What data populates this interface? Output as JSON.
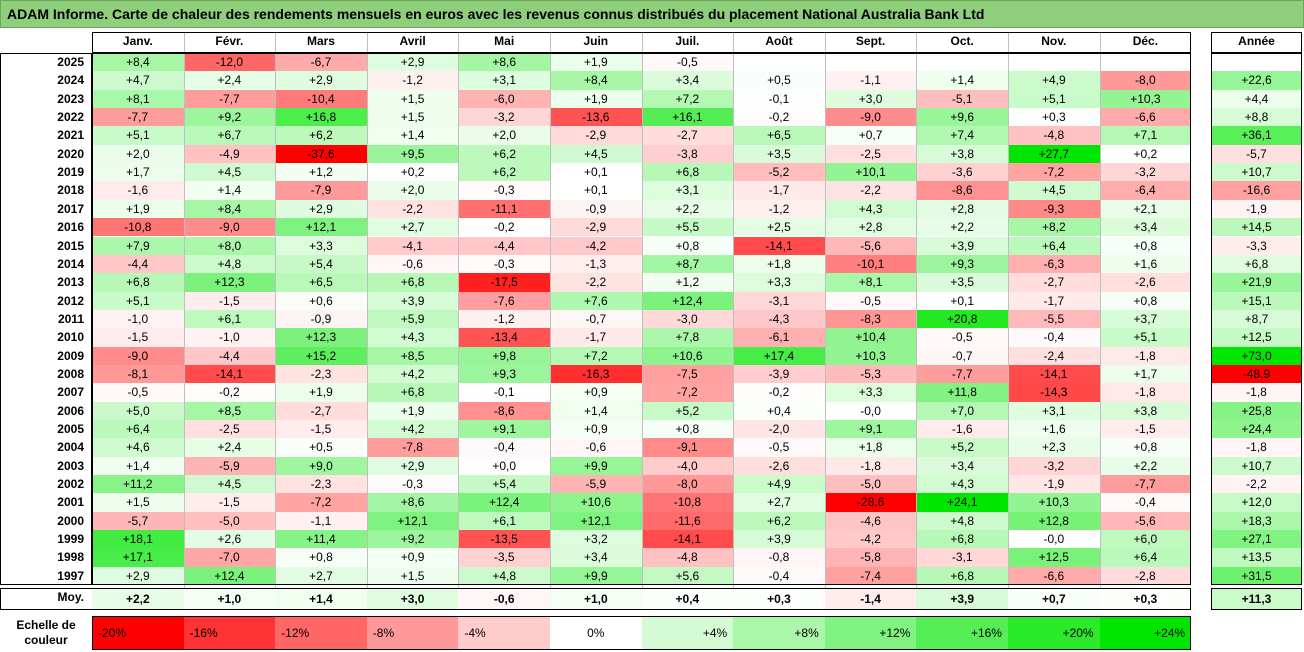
{
  "title": "ADAM Informe. Carte de chaleur des rendements mensuels en euros avec les revenus connus distribués du placement National Australia Bank Ltd",
  "chart_data": {
    "type": "heatmap",
    "months": [
      "Janv.",
      "Févr.",
      "Mars",
      "Avril",
      "Mai",
      "Juin",
      "Juil.",
      "Août",
      "Sept.",
      "Oct.",
      "Nov.",
      "Déc."
    ],
    "annual_label": "Année",
    "average_label": "Moy.",
    "rows": [
      {
        "year": "2025",
        "values": [
          "+8,4",
          "-12,0",
          "-6,7",
          "+2,9",
          "+8,6",
          "+1,9",
          "-0,5",
          "",
          "",
          "",
          "",
          ""
        ],
        "annual": ""
      },
      {
        "year": "2024",
        "values": [
          "+4,7",
          "+2,4",
          "+2,9",
          "-1,2",
          "+3,1",
          "+8,4",
          "+3,4",
          "+0,5",
          "-1,1",
          "+1,4",
          "+4,9",
          "-8,0"
        ],
        "annual": "+22,6"
      },
      {
        "year": "2023",
        "values": [
          "+8,1",
          "-7,7",
          "-10,4",
          "+1,5",
          "-6,0",
          "+1,9",
          "+7,2",
          "-0,1",
          "+3,0",
          "-5,1",
          "+5,1",
          "+10,3"
        ],
        "annual": "+4,4"
      },
      {
        "year": "2022",
        "values": [
          "-7,7",
          "+9,2",
          "+16,8",
          "+1,5",
          "-3,2",
          "-13,6",
          "+16,1",
          "-0,2",
          "-9,0",
          "+9,6",
          "+0,3",
          "-6,6"
        ],
        "annual": "+8,8"
      },
      {
        "year": "2021",
        "values": [
          "+5,1",
          "+6,7",
          "+6,2",
          "+1,4",
          "+2,0",
          "-2,9",
          "-2,7",
          "+6,5",
          "+0,7",
          "+7,4",
          "-4,8",
          "+7,1"
        ],
        "annual": "+36,1"
      },
      {
        "year": "2020",
        "values": [
          "+2,0",
          "-4,9",
          "-37,6",
          "+9,5",
          "+6,2",
          "+4,5",
          "-3,8",
          "+3,5",
          "-2,5",
          "+3,8",
          "+27,7",
          "+0,2"
        ],
        "annual": "-5,7"
      },
      {
        "year": "2019",
        "values": [
          "+1,7",
          "+4,5",
          "+1,2",
          "+0,2",
          "+6,2",
          "+0,1",
          "+6,8",
          "-5,2",
          "+10,1",
          "-3,6",
          "-7,2",
          "-3,2"
        ],
        "annual": "+10,7"
      },
      {
        "year": "2018",
        "values": [
          "-1,6",
          "+1,4",
          "-7,9",
          "+2,0",
          "-0,3",
          "+0,1",
          "+3,1",
          "-1,7",
          "-2,2",
          "-8,6",
          "+4,5",
          "-6,4"
        ],
        "annual": "-16,6"
      },
      {
        "year": "2017",
        "values": [
          "+1,9",
          "+8,4",
          "+2,9",
          "-2,2",
          "-11,1",
          "-0,9",
          "+2,2",
          "-1,2",
          "+4,3",
          "+2,8",
          "-9,3",
          "+2,1"
        ],
        "annual": "-1,9"
      },
      {
        "year": "2016",
        "values": [
          "-10,8",
          "-9,0",
          "+12,1",
          "+2,7",
          "-0,2",
          "-2,9",
          "+5,5",
          "+2,5",
          "+2,8",
          "+2,2",
          "+8,2",
          "+3,4"
        ],
        "annual": "+14,5"
      },
      {
        "year": "2015",
        "values": [
          "+7,9",
          "+8,0",
          "+3,3",
          "-4,1",
          "-4,4",
          "-4,2",
          "+0,8",
          "-14,1",
          "-5,6",
          "+3,9",
          "+6,4",
          "+0,8"
        ],
        "annual": "-3,3"
      },
      {
        "year": "2014",
        "values": [
          "-4,4",
          "+4,8",
          "+5,4",
          "-0,6",
          "-0,3",
          "-1,3",
          "+8,7",
          "+1,8",
          "-10,1",
          "+9,3",
          "-6,3",
          "+1,6"
        ],
        "annual": "+6,8"
      },
      {
        "year": "2013",
        "values": [
          "+6,8",
          "+12,3",
          "+6,5",
          "+6,8",
          "-17,5",
          "-2,2",
          "+1,2",
          "+3,3",
          "+8,1",
          "+3,5",
          "-2,7",
          "-2,6"
        ],
        "annual": "+21,9"
      },
      {
        "year": "2012",
        "values": [
          "+5,1",
          "-1,5",
          "+0,6",
          "+3,9",
          "-7,6",
          "+7,6",
          "+12,4",
          "-3,1",
          "-0,5",
          "+0,1",
          "-1,7",
          "+0,8"
        ],
        "annual": "+15,1"
      },
      {
        "year": "2011",
        "values": [
          "-1,0",
          "+6,1",
          "-0,9",
          "+5,9",
          "-1,2",
          "-0,7",
          "-3,0",
          "-4,3",
          "-8,3",
          "+20,8",
          "-5,5",
          "+3,7"
        ],
        "annual": "+8,7"
      },
      {
        "year": "2010",
        "values": [
          "-1,5",
          "-1,0",
          "+12,3",
          "+4,3",
          "-13,4",
          "-1,7",
          "+7,8",
          "-6,1",
          "+10,4",
          "-0,5",
          "-0,4",
          "+5,1"
        ],
        "annual": "+12,5"
      },
      {
        "year": "2009",
        "values": [
          "-9,0",
          "-4,4",
          "+15,2",
          "+8,5",
          "+9,8",
          "+7,2",
          "+10,6",
          "+17,4",
          "+10,3",
          "-0,7",
          "-2,4",
          "-1,8"
        ],
        "annual": "+73,0"
      },
      {
        "year": "2008",
        "values": [
          "-8,1",
          "-14,1",
          "-2,3",
          "+4,2",
          "+9,3",
          "-16,3",
          "-7,5",
          "-3,9",
          "-5,3",
          "-7,7",
          "-14,1",
          "+1,7"
        ],
        "annual": "-48,9"
      },
      {
        "year": "2007",
        "values": [
          "-0,5",
          "-0,2",
          "+1,9",
          "+6,8",
          "-0,1",
          "+0,9",
          "-7,2",
          "-0,2",
          "+3,3",
          "+11,8",
          "-14,3",
          "-1,8"
        ],
        "annual": "-1,8"
      },
      {
        "year": "2006",
        "values": [
          "+5,0",
          "+8,5",
          "-2,7",
          "+1,9",
          "-8,6",
          "+1,4",
          "+5,2",
          "+0,4",
          "-0,0",
          "+7,0",
          "+3,1",
          "+3,8"
        ],
        "annual": "+25,8"
      },
      {
        "year": "2005",
        "values": [
          "+6,4",
          "-2,5",
          "-1,5",
          "+4,2",
          "+9,1",
          "+0,9",
          "+0,8",
          "-2,0",
          "+9,1",
          "-1,6",
          "+1,6",
          "-1,5"
        ],
        "annual": "+24,4"
      },
      {
        "year": "2004",
        "values": [
          "+4,6",
          "+2,4",
          "+0,5",
          "-7,8",
          "-0,4",
          "-0,6",
          "-9,1",
          "-0,5",
          "+1,8",
          "+5,2",
          "+2,3",
          "+0,8"
        ],
        "annual": "-1,8"
      },
      {
        "year": "2003",
        "values": [
          "+1,4",
          "-5,9",
          "+9,0",
          "+2,9",
          "+0,0",
          "+9,9",
          "-4,0",
          "-2,6",
          "-1,8",
          "+3,4",
          "-3,2",
          "+2,2"
        ],
        "annual": "+10,7"
      },
      {
        "year": "2002",
        "values": [
          "+11,2",
          "+4,5",
          "-2,3",
          "-0,3",
          "+5,4",
          "-5,9",
          "-8,0",
          "+4,9",
          "-5,0",
          "+4,3",
          "-1,9",
          "-7,7"
        ],
        "annual": "-2,2"
      },
      {
        "year": "2001",
        "values": [
          "+1,5",
          "-1,5",
          "-7,2",
          "+8,6",
          "+12,4",
          "+10,6",
          "-10,8",
          "+2,7",
          "-28,6",
          "+24,1",
          "+10,3",
          "-0,4"
        ],
        "annual": "+12,0"
      },
      {
        "year": "2000",
        "values": [
          "-5,7",
          "-5,0",
          "-1,1",
          "+12,1",
          "+6,1",
          "+12,1",
          "-11,6",
          "+6,2",
          "-4,6",
          "+4,8",
          "+12,8",
          "-5,6"
        ],
        "annual": "+18,3"
      },
      {
        "year": "1999",
        "values": [
          "+18,1",
          "+2,6",
          "+11,4",
          "+9,2",
          "-13,5",
          "+3,2",
          "-14,1",
          "+3,9",
          "-4,2",
          "+6,8",
          "-0,0",
          "+6,0"
        ],
        "annual": "+27,1"
      },
      {
        "year": "1998",
        "values": [
          "+17,1",
          "-7,0",
          "+0,8",
          "+0,9",
          "-3,5",
          "+3,4",
          "-4,8",
          "-0,8",
          "-5,8",
          "-3,1",
          "+12,5",
          "+6,4"
        ],
        "annual": "+13,5"
      },
      {
        "year": "1997",
        "values": [
          "+2,9",
          "+12,4",
          "+2,7",
          "+1,5",
          "+4,8",
          "+9,9",
          "+5,6",
          "-0,4",
          "-7,4",
          "+6,8",
          "-6,6",
          "-2,8"
        ],
        "annual": "+31,5"
      }
    ],
    "averages": [
      "+2,2",
      "+1,0",
      "+1,4",
      "+3,0",
      "-0,6",
      "+1,0",
      "+0,4",
      "+0,3",
      "-1,4",
      "+3,9",
      "+0,7",
      "+0,3"
    ],
    "average_annual": "+11,3",
    "scale_label_line1": "Echelle de",
    "scale_label_line2": "couleur",
    "scale": [
      {
        "label": "-20%",
        "value": -20
      },
      {
        "label": "-16%",
        "value": -16
      },
      {
        "label": "-12%",
        "value": -12
      },
      {
        "label": "-8%",
        "value": -8
      },
      {
        "label": "-4%",
        "value": -4
      },
      {
        "label": "0%",
        "value": 0
      },
      {
        "label": "+4%",
        "value": 4
      },
      {
        "label": "+8%",
        "value": 8
      },
      {
        "label": "+12%",
        "value": 12
      },
      {
        "label": "+16%",
        "value": 16
      },
      {
        "label": "+20%",
        "value": 20
      },
      {
        "label": "+24%",
        "value": 24
      }
    ],
    "colors": {
      "negative_max": "#ff0000",
      "positive_max": "#00e600",
      "neutral": "#ffffff",
      "title_background": "#8fce7a"
    }
  }
}
